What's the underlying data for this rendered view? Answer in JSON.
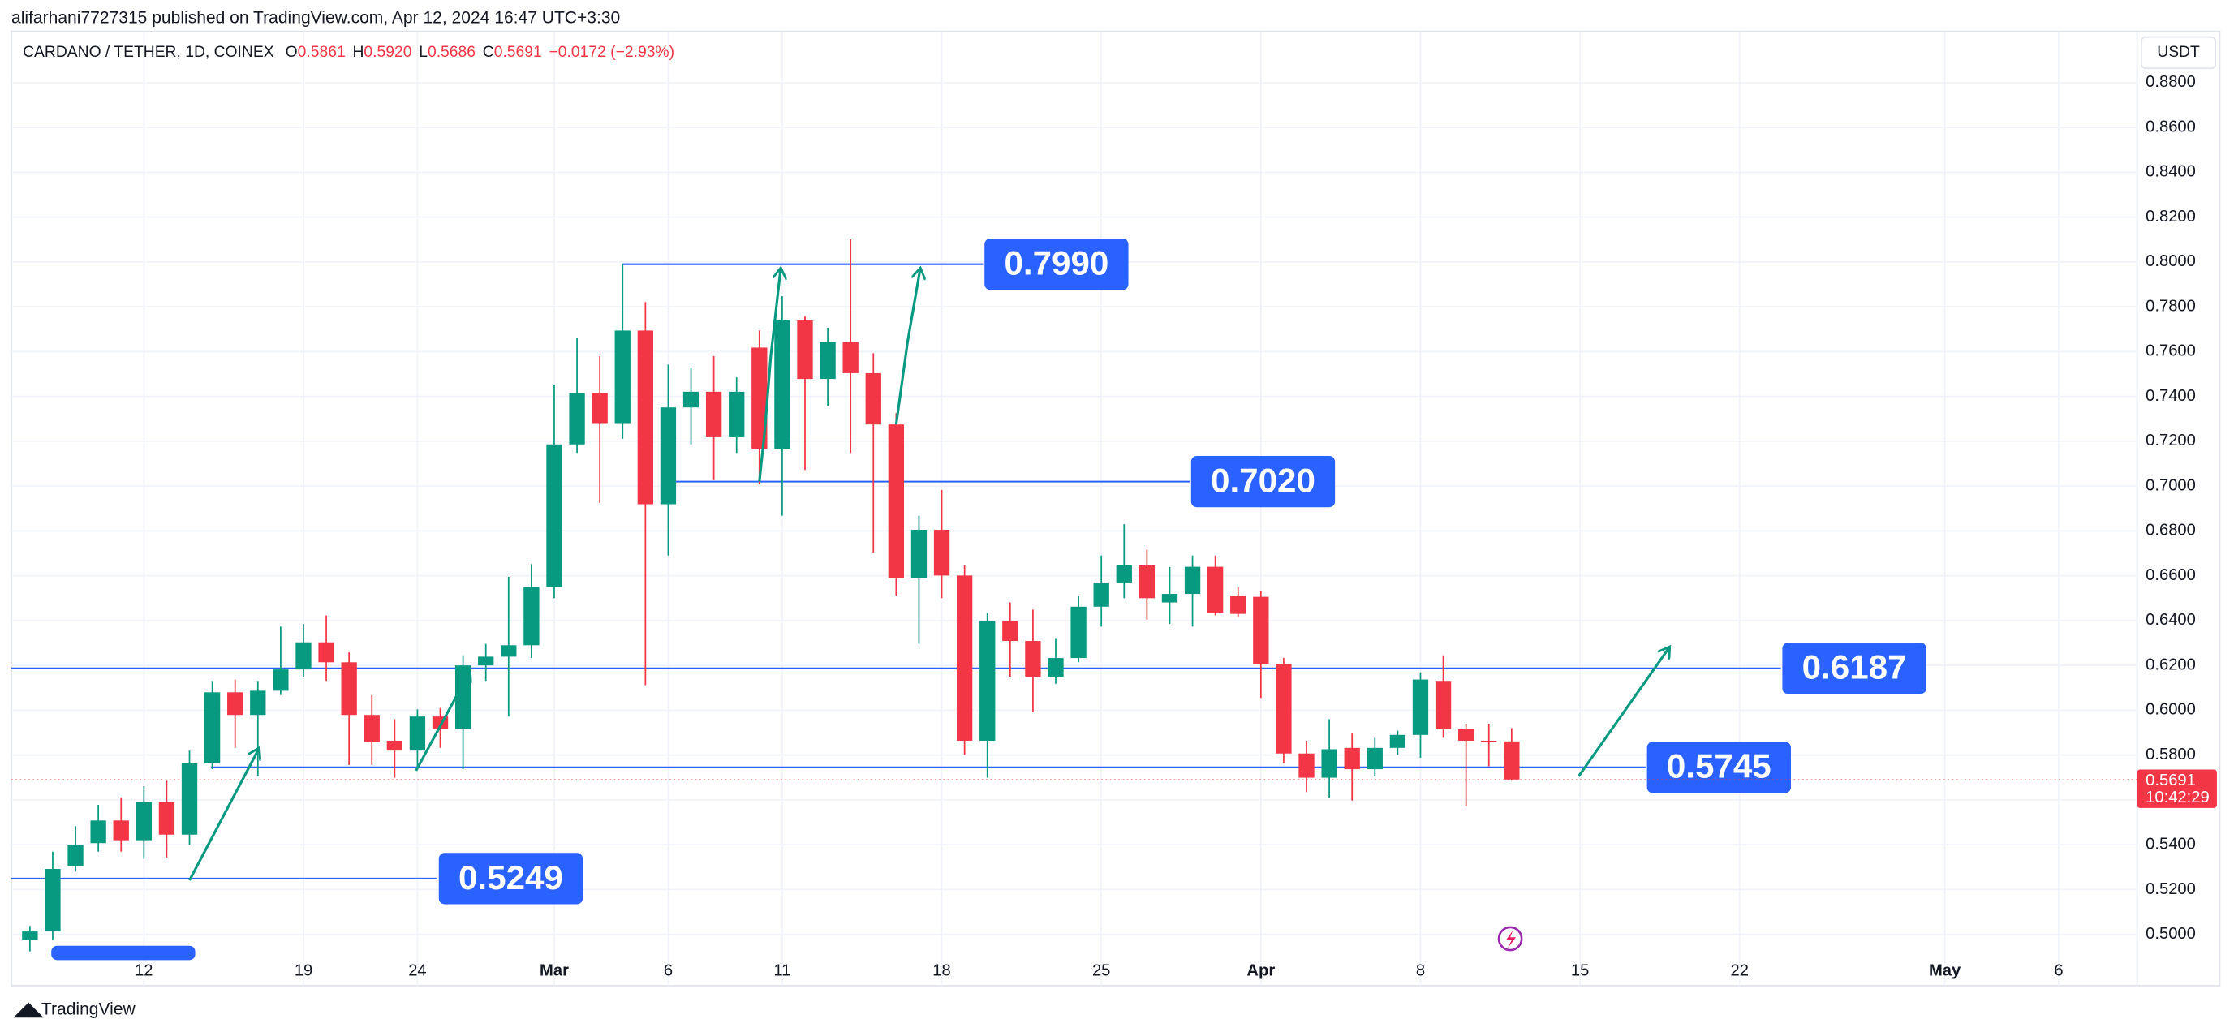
{
  "header": {
    "publisher": "alifarhani7727315 published on TradingView.com, Apr 12, 2024 16:47 UTC+3:30"
  },
  "footer": "TradingView",
  "chart_data": {
    "type": "candlestick",
    "legend": {
      "name": "CARDANO / TETHER, 1D, COINEX",
      "fields": [
        {
          "key": "O",
          "value": "0.5861"
        },
        {
          "key": "H",
          "value": "0.5920"
        },
        {
          "key": "L",
          "value": "0.5686"
        },
        {
          "key": "C",
          "value": "0.5691"
        }
      ],
      "change": "−0.0172 (−2.93%)"
    },
    "currency": "USDT",
    "last_price": {
      "value": 0.5691,
      "label": "0.5691"
    },
    "countdown": "10:42:29",
    "up_color": "#089981",
    "down_color": "#f23645",
    "level_color": "#2962ff",
    "grid": true,
    "open": [
      0.4975,
      0.5013,
      0.5305,
      0.5407,
      0.5508,
      0.542,
      0.559,
      0.5445,
      0.5763,
      0.608,
      0.5979,
      0.6087,
      0.6182,
      0.6303,
      0.6214,
      0.5979,
      0.5864,
      0.582,
      0.5972,
      0.5915,
      0.62,
      0.6239,
      0.629,
      0.655,
      0.7186,
      0.7415,
      0.7281,
      0.7694,
      0.6919,
      0.7351,
      0.7421,
      0.7218,
      0.7618,
      0.7167,
      0.7739,
      0.7478,
      0.7643,
      0.7504,
      0.7275,
      0.6589,
      0.6805,
      0.6601,
      0.5864,
      0.6398,
      0.6309,
      0.615,
      0.6233,
      0.6462,
      0.657,
      0.6646,
      0.6481,
      0.6519,
      0.664,
      0.6512,
      0.6506,
      0.6207,
      0.5807,
      0.5699,
      0.5832,
      0.5737,
      0.5832,
      0.589,
      0.6131,
      0.5915,
      0.5864,
      0.5861
    ],
    "high": [
      0.5038,
      0.5369,
      0.5483,
      0.5578,
      0.561,
      0.5661,
      0.5686,
      0.582,
      0.6131,
      0.6137,
      0.6131,
      0.6373,
      0.6385,
      0.6423,
      0.6258,
      0.6068,
      0.596,
      0.6004,
      0.601,
      0.6245,
      0.6296,
      0.6595,
      0.6652,
      0.7453,
      0.7663,
      0.758,
      0.7993,
      0.7821,
      0.7542,
      0.7529,
      0.758,
      0.7485,
      0.7694,
      0.7847,
      0.7758,
      0.7707,
      0.8101,
      0.7593,
      0.7326,
      0.6868,
      0.6983,
      0.6646,
      0.6436,
      0.6481,
      0.6449,
      0.6322,
      0.6512,
      0.669,
      0.683,
      0.6716,
      0.6639,
      0.669,
      0.669,
      0.655,
      0.6531,
      0.6233,
      0.5864,
      0.596,
      0.5896,
      0.5877,
      0.5909,
      0.6169,
      0.6245,
      0.594,
      0.594,
      0.592
    ],
    "low": [
      0.4924,
      0.4975,
      0.528,
      0.5369,
      0.5369,
      0.5337,
      0.5343,
      0.54,
      0.5737,
      0.5832,
      0.5705,
      0.6068,
      0.615,
      0.6131,
      0.5756,
      0.5756,
      0.5699,
      0.575,
      0.5832,
      0.5737,
      0.6131,
      0.5972,
      0.6233,
      0.65,
      0.7148,
      0.6925,
      0.7211,
      0.6112,
      0.669,
      0.7186,
      0.7027,
      0.7148,
      0.7008,
      0.6868,
      0.7072,
      0.7358,
      0.7148,
      0.6703,
      0.6512,
      0.6296,
      0.65,
      0.5801,
      0.5699,
      0.615,
      0.5991,
      0.6118,
      0.6214,
      0.6373,
      0.65,
      0.6404,
      0.6385,
      0.6373,
      0.6423,
      0.6417,
      0.6055,
      0.5763,
      0.5635,
      0.561,
      0.5597,
      0.5705,
      0.5801,
      0.5788,
      0.5877,
      0.5572,
      0.575,
      0.5686
    ],
    "close": [
      0.5013,
      0.5292,
      0.54,
      0.5508,
      0.542,
      0.559,
      0.5445,
      0.5763,
      0.608,
      0.5979,
      0.6087,
      0.6182,
      0.6303,
      0.6214,
      0.5979,
      0.5858,
      0.582,
      0.5972,
      0.5915,
      0.62,
      0.6239,
      0.629,
      0.655,
      0.7186,
      0.7415,
      0.7281,
      0.7694,
      0.6919,
      0.7351,
      0.7421,
      0.7218,
      0.7421,
      0.7167,
      0.7739,
      0.7478,
      0.7643,
      0.7504,
      0.7275,
      0.6589,
      0.6805,
      0.6601,
      0.5864,
      0.6398,
      0.6309,
      0.615,
      0.6233,
      0.6462,
      0.657,
      0.6646,
      0.65,
      0.6519,
      0.664,
      0.6436,
      0.643,
      0.6207,
      0.5807,
      0.5699,
      0.5826,
      0.5737,
      0.5832,
      0.589,
      0.6137,
      0.5915,
      0.5864,
      0.5861,
      0.5691
    ],
    "xlim": [
      -0.8125,
      92.4375
    ],
    "xticks": [
      {
        "value": 5,
        "label": "12"
      },
      {
        "value": 12,
        "label": "19"
      },
      {
        "value": 17,
        "label": "24"
      },
      {
        "value": 23,
        "label": "Mar"
      },
      {
        "value": 28,
        "label": "6"
      },
      {
        "value": 33,
        "label": "11"
      },
      {
        "value": 40,
        "label": "18"
      },
      {
        "value": 47,
        "label": "25"
      },
      {
        "value": 54,
        "label": "Apr"
      },
      {
        "value": 61,
        "label": "8"
      },
      {
        "value": 68,
        "label": "15"
      },
      {
        "value": 75,
        "label": "22"
      },
      {
        "value": 84,
        "label": "May"
      },
      {
        "value": 89,
        "label": "6"
      }
    ],
    "ylim": [
      0.4771,
      0.9029
    ],
    "yticks": [
      {
        "value": 0.5,
        "label": "0.5000"
      },
      {
        "value": 0.52,
        "label": "0.5200"
      },
      {
        "value": 0.54,
        "label": "0.5400"
      },
      {
        "value": 0.56,
        "label": "0.5600"
      },
      {
        "value": 0.58,
        "label": "0.5800"
      },
      {
        "value": 0.6,
        "label": "0.6000"
      },
      {
        "value": 0.62,
        "label": "0.6200"
      },
      {
        "value": 0.64,
        "label": "0.6400"
      },
      {
        "value": 0.66,
        "label": "0.6600"
      },
      {
        "value": 0.68,
        "label": "0.6800"
      },
      {
        "value": 0.7,
        "label": "0.7000"
      },
      {
        "value": 0.72,
        "label": "0.7200"
      },
      {
        "value": 0.74,
        "label": "0.7400"
      },
      {
        "value": 0.76,
        "label": "0.7600"
      },
      {
        "value": 0.78,
        "label": "0.7800"
      },
      {
        "value": 0.8,
        "label": "0.8000"
      },
      {
        "value": 0.82,
        "label": "0.8200"
      },
      {
        "value": 0.84,
        "label": "0.8400"
      },
      {
        "value": 0.86,
        "label": "0.8600"
      },
      {
        "value": 0.88,
        "label": "0.8800"
      }
    ],
    "levels": [
      {
        "value": 0.799,
        "label": "0.7990"
      },
      {
        "value": 0.702,
        "label": "0.7020"
      },
      {
        "value": 0.6187,
        "label": "0.6187"
      },
      {
        "value": 0.5745,
        "label": "0.5745"
      },
      {
        "value": 0.5249,
        "label": "0.5249"
      }
    ]
  }
}
